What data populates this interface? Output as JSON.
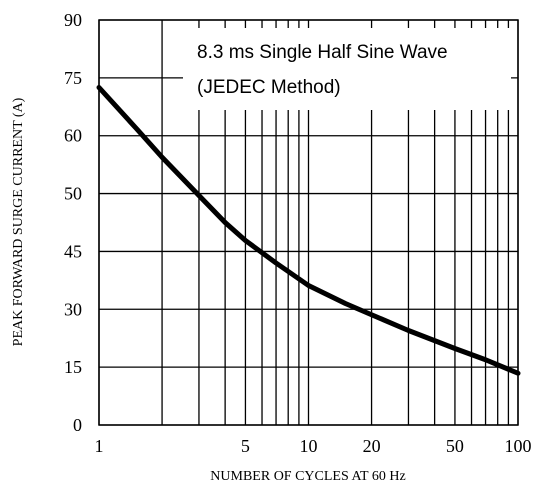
{
  "chart_data": {
    "type": "line",
    "title": "",
    "xlabel": "NUMBER OF CYCLES AT 60 Hz",
    "ylabel": "PEAK FORWARD SURGE CURRENT (A)",
    "annotation": [
      "8.3 ms Single Half Sine Wave",
      "(JEDEC Method)"
    ],
    "x_tick_labels": [
      "1",
      "5",
      "10",
      "20",
      "50",
      "100"
    ],
    "x_tick_positions": [
      1,
      5,
      10,
      20,
      50,
      100
    ],
    "x_gridlines": [
      1,
      2,
      3,
      4,
      5,
      6,
      7,
      8,
      9,
      10,
      20,
      30,
      40,
      50,
      60,
      70,
      80,
      90,
      100
    ],
    "y_tick_labels": [
      "0",
      "15",
      "30",
      "45",
      "50",
      "60",
      "75",
      "90"
    ],
    "y_gridline_count": 8,
    "grid": true,
    "series": [
      {
        "x": [
          1,
          1.5,
          2,
          3,
          4,
          5,
          7,
          10,
          15,
          20,
          30,
          50,
          70,
          100
        ],
        "y": [
          75,
          66,
          59.5,
          51,
          45,
          41,
          36,
          31,
          27,
          24.5,
          21,
          17,
          14.5,
          11.5
        ]
      }
    ]
  }
}
